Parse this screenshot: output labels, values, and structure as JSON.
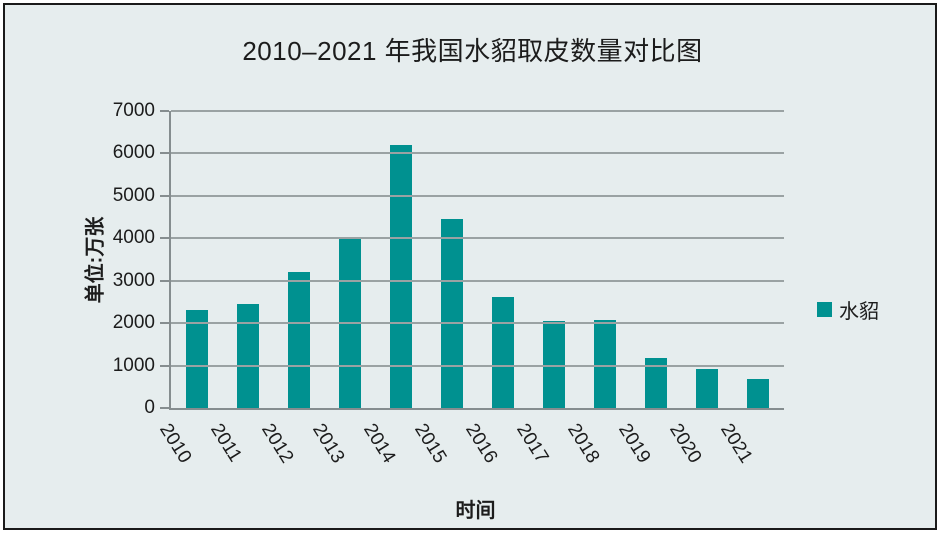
{
  "chart_data": {
    "type": "bar",
    "title": "2010–2021 年我国水貂取皮数量对比图",
    "xlabel": "时间",
    "ylabel": "单位:万张",
    "categories": [
      "2010",
      "2011",
      "2012",
      "2013",
      "2014",
      "2015",
      "2016",
      "2017",
      "2018",
      "2019",
      "2020",
      "2021"
    ],
    "values": [
      2300,
      2450,
      3200,
      4000,
      6200,
      4450,
      2610,
      2060,
      2080,
      1170,
      930,
      690
    ],
    "series_name": "水貂",
    "ylim": [
      0,
      7000
    ],
    "ytick_interval": 1000,
    "grid": true,
    "legend_position": "right"
  },
  "legend": {
    "label": "水貂"
  },
  "colors": {
    "bar": "#009190",
    "background": "#e6edee",
    "gridline": "#9aa2a3",
    "axis": "#858d8f",
    "text": "#1c1c1c",
    "frame_border": "#1a1a1a"
  }
}
